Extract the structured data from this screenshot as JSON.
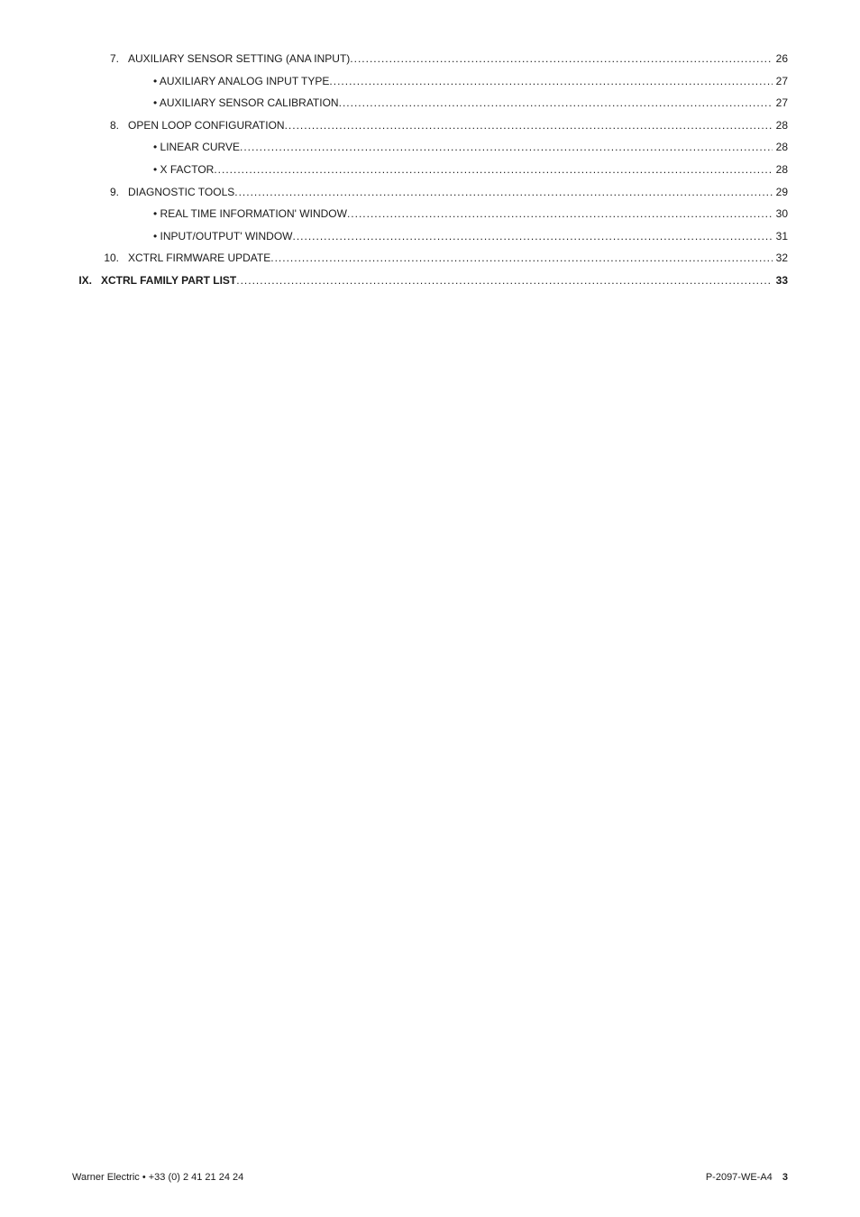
{
  "toc": [
    {
      "level": 1,
      "num": "7.",
      "label": "AUXILIARY SENSOR SETTING (ANA INPUT)",
      "page": "26"
    },
    {
      "level": 2,
      "num": "",
      "label": "• AUXILIARY ANALOG INPUT TYPE",
      "page": "27"
    },
    {
      "level": 2,
      "num": "",
      "label": "• AUXILIARY SENSOR CALIBRATION",
      "page": "27"
    },
    {
      "level": 1,
      "num": "8.",
      "label": "OPEN LOOP CONFIGURATION",
      "page": "28"
    },
    {
      "level": 2,
      "num": "",
      "label": "• LINEAR CURVE",
      "page": "28"
    },
    {
      "level": 2,
      "num": "",
      "label": "• X FACTOR",
      "page": "28"
    },
    {
      "level": 1,
      "num": "9.",
      "label": "DIAGNOSTIC TOOLS",
      "page": "29"
    },
    {
      "level": 2,
      "num": "",
      "label": "• REAL TIME INFORMATION' WINDOW",
      "page": "30"
    },
    {
      "level": 2,
      "num": "",
      "label": "• INPUT/OUTPUT' WINDOW",
      "page": "31"
    },
    {
      "level": 1,
      "num": "10.",
      "label": "XCTRL FIRMWARE UPDATE",
      "page": "32"
    },
    {
      "level": 0,
      "num": "IX.",
      "label": "XCTRL FAMILY PART LIST",
      "page": "33"
    }
  ],
  "footer": {
    "left": "Warner Electric • +33 (0) 2 41 21 24 24",
    "doc": "P-2097-WE-A4",
    "pagenum": "3"
  }
}
